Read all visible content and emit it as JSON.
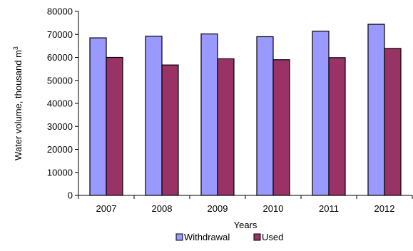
{
  "chart_data": {
    "type": "bar",
    "categories": [
      "2007",
      "2008",
      "2009",
      "2010",
      "2011",
      "2012"
    ],
    "series": [
      {
        "name": "Withdrawal",
        "color": "#9999ff",
        "values": [
          68500,
          69200,
          70200,
          69000,
          71400,
          74400
        ]
      },
      {
        "name": "Used",
        "color": "#993366",
        "values": [
          60000,
          56700,
          59400,
          59000,
          59900,
          63900
        ]
      }
    ],
    "xlabel": "Years",
    "ylabel_prefix": "Water volume, thousand m",
    "ylabel_superscript": "3",
    "ylim": [
      0,
      80000
    ],
    "yticks": [
      "0",
      "10000",
      "20000",
      "30000",
      "40000",
      "50000",
      "60000",
      "70000",
      "80000"
    ],
    "grid": false,
    "legend_position": "bottom"
  }
}
